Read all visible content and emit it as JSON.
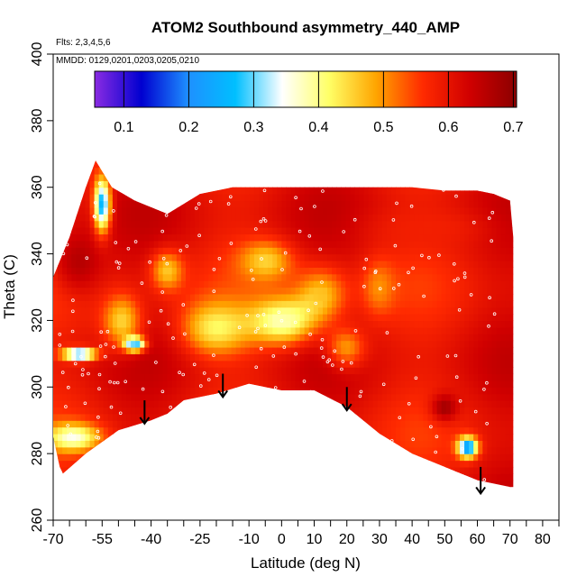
{
  "chart_data": {
    "type": "heatmap",
    "title": "ATOM2 Southbound asymmetry_440_AMP",
    "note_flights": "Flts: 2,3,4,5,6",
    "note_dates": "MMDD: 0129,0201,0203,0205,0210",
    "xlabel": "Latitude (deg N)",
    "ylabel": "Theta (C)",
    "xlim": [
      -70,
      85
    ],
    "ylim": [
      260,
      400
    ],
    "x_ticks": [
      -70,
      -55,
      -40,
      -25,
      -10,
      0,
      10,
      20,
      30,
      40,
      50,
      60,
      70,
      80
    ],
    "x_tick_labels": [
      "-70",
      "-55",
      "-40",
      "-25",
      "-10",
      "0",
      "10",
      "20",
      "30",
      "40",
      "50",
      "60",
      "70",
      "80"
    ],
    "x_minor_ticks": [
      -65,
      -60,
      -50,
      -45,
      -35,
      -30,
      -20,
      -15,
      -5,
      5,
      15,
      25,
      35,
      45,
      55,
      65,
      75,
      85
    ],
    "y_ticks": [
      260,
      280,
      300,
      320,
      340,
      360,
      380,
      400
    ],
    "y_tick_labels": [
      "260",
      "280",
      "300",
      "320",
      "340",
      "360",
      "380",
      "400"
    ],
    "colorbar": {
      "range": [
        0.055,
        0.705
      ],
      "ticks": [
        0.1,
        0.2,
        0.3,
        0.4,
        0.5,
        0.6,
        0.7
      ],
      "tick_labels": [
        "0.1",
        "0.2",
        "0.3",
        "0.4",
        "0.5",
        "0.6",
        "0.7"
      ],
      "colors": [
        "#8a2be2",
        "#0000d0",
        "#1e90ff",
        "#00bfff",
        "#ffffff",
        "#ffff66",
        "#ffa500",
        "#ff2a00",
        "#d00000",
        "#8b0000"
      ]
    },
    "boundary": {
      "top": [
        [
          -70,
          333
        ],
        [
          -65,
          345
        ],
        [
          -60,
          360
        ],
        [
          -57,
          368
        ],
        [
          -52,
          360
        ],
        [
          -45,
          356
        ],
        [
          -35,
          352
        ],
        [
          -25,
          358
        ],
        [
          -15,
          360
        ],
        [
          -5,
          360
        ],
        [
          0,
          360
        ],
        [
          20,
          360
        ],
        [
          35,
          360
        ],
        [
          40,
          360
        ],
        [
          50,
          359
        ],
        [
          60,
          359
        ],
        [
          65,
          358
        ],
        [
          70,
          356
        ],
        [
          71,
          345
        ],
        [
          71,
          270
        ]
      ],
      "bottom": [
        [
          -70,
          285
        ],
        [
          -68,
          276
        ],
        [
          -67,
          274
        ],
        [
          -60,
          280
        ],
        [
          -50,
          287
        ],
        [
          -40,
          290
        ],
        [
          -35,
          292
        ],
        [
          -30,
          296
        ],
        [
          -20,
          298
        ],
        [
          -10,
          301
        ],
        [
          0,
          299
        ],
        [
          10,
          299
        ],
        [
          20,
          294
        ],
        [
          30,
          286
        ],
        [
          40,
          280
        ],
        [
          50,
          276
        ],
        [
          60,
          272
        ],
        [
          70,
          270
        ],
        [
          71,
          270
        ]
      ]
    },
    "anomalies": [
      {
        "x": -55,
        "y": 355,
        "v": 0.25,
        "rx": 2.5,
        "ry": 8
      },
      {
        "x": -62,
        "y": 338,
        "v": 0.66,
        "rx": 8,
        "ry": 10
      },
      {
        "x": -49,
        "y": 320,
        "v": 0.45,
        "rx": 6,
        "ry": 8
      },
      {
        "x": -45,
        "y": 313,
        "v": 0.25,
        "rx": 3,
        "ry": 2
      },
      {
        "x": -62,
        "y": 310,
        "v": 0.22,
        "rx": 5,
        "ry": 1.8
      },
      {
        "x": -64,
        "y": 285,
        "v": 0.35,
        "rx": 8,
        "ry": 4
      },
      {
        "x": -20,
        "y": 318,
        "v": 0.42,
        "rx": 10,
        "ry": 8
      },
      {
        "x": -5,
        "y": 338,
        "v": 0.45,
        "rx": 8,
        "ry": 6
      },
      {
        "x": 0,
        "y": 320,
        "v": 0.38,
        "rx": 10,
        "ry": 7
      },
      {
        "x": 12,
        "y": 328,
        "v": 0.47,
        "rx": 8,
        "ry": 8
      },
      {
        "x": -35,
        "y": 335,
        "v": 0.46,
        "rx": 5,
        "ry": 6
      },
      {
        "x": 20,
        "y": 312,
        "v": 0.5,
        "rx": 6,
        "ry": 6
      },
      {
        "x": 30,
        "y": 330,
        "v": 0.5,
        "rx": 5,
        "ry": 8
      },
      {
        "x": 50,
        "y": 294,
        "v": 0.68,
        "rx": 4,
        "ry": 4
      },
      {
        "x": 57,
        "y": 282,
        "v": 0.2,
        "rx": 3,
        "ry": 3
      },
      {
        "x": 45,
        "y": 348,
        "v": 0.58,
        "rx": 18,
        "ry": 6
      }
    ],
    "arrows": [
      {
        "x": -42,
        "y_start": 296,
        "y_end": 289
      },
      {
        "x": -18,
        "y_start": 304,
        "y_end": 297
      },
      {
        "x": 20,
        "y_start": 300,
        "y_end": 293
      },
      {
        "x": 61,
        "y_start": 276,
        "y_end": 268
      }
    ],
    "samples": {
      "count": 260,
      "seed": 7
    }
  }
}
